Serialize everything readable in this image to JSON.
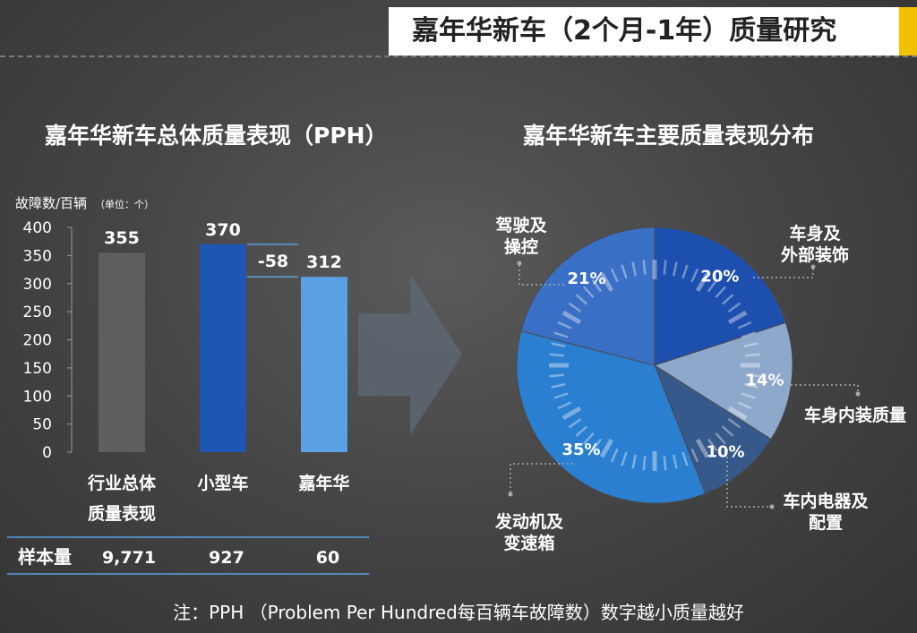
{
  "header": {
    "title": "嘉年华新车（2个月-1年）质量研究"
  },
  "left_title": "嘉年华新车总体质量表现（PPH）",
  "right_title": "嘉年华新车主要质量表现分布",
  "footnote": "注：PPH （Problem Per Hundred每百辆车故障数）数字越小质量越好",
  "colors": {
    "accent": "#f2c200",
    "bar_gray": "#5e5e5e",
    "bar_dark": "#1f56b4",
    "bar_light": "#5aa0e2"
  },
  "chart_data": [
    {
      "type": "bar",
      "title": "嘉年华新车总体质量表现（PPH）",
      "ylabel": "故障数/百辆",
      "ylabel_unit": "（单位：个）",
      "ylim": [
        0,
        400
      ],
      "yticks": [
        0,
        50,
        100,
        150,
        200,
        250,
        300,
        350,
        400
      ],
      "categories": [
        {
          "line1": "行业总体",
          "line2": "质量表现"
        },
        {
          "line1": "小型车",
          "line2": ""
        },
        {
          "line1": "嘉年华",
          "line2": ""
        }
      ],
      "values": [
        355,
        370,
        312
      ],
      "colors": [
        "#5e5e5e",
        "#1f56b4",
        "#5aa0e2"
      ],
      "difference": {
        "label": "-58",
        "from": 370,
        "to": 312
      },
      "sample": {
        "label": "样本量",
        "values": [
          "9,771",
          "927",
          "60"
        ]
      }
    },
    {
      "type": "pie",
      "title": "嘉年华新车主要质量表现分布",
      "slices": [
        {
          "name": "车身及外部装饰",
          "lines": [
            "车身及",
            "外部装饰"
          ],
          "value": 20,
          "label": "20%",
          "color": "#1c4fae"
        },
        {
          "name": "车身内装质量",
          "lines": [
            "车身内装质量"
          ],
          "value": 14,
          "label": "14%",
          "color": "#8ea8cc"
        },
        {
          "name": "车内电器及配置",
          "lines": [
            "车内电器及",
            "配置"
          ],
          "value": 10,
          "label": "10%",
          "color": "#36598b"
        },
        {
          "name": "发动机及变速箱",
          "lines": [
            "发动机及",
            "变速箱"
          ],
          "value": 35,
          "label": "35%",
          "color": "#2a7fd0"
        },
        {
          "name": "驾驶及操控",
          "lines": [
            "驾驶及",
            "操控"
          ],
          "value": 21,
          "label": "21%",
          "color": "#3a6fc6"
        }
      ]
    }
  ]
}
